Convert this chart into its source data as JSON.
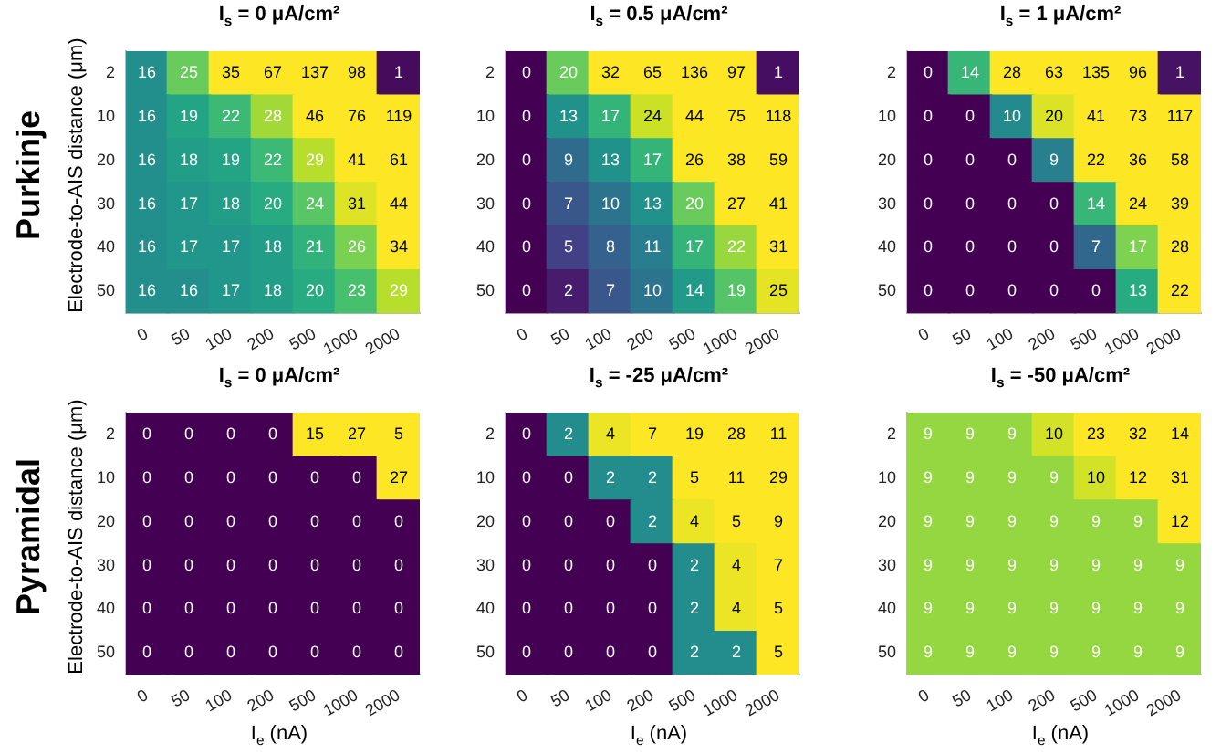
{
  "chart_data": [
    {
      "type": "heatmap",
      "title": "I$_{s}$ = 0 μA/cm²",
      "ylabel": "Electrode-to-AIS distance (μm)",
      "annotations": [
        "Purkinje"
      ],
      "categories": [
        "0",
        "50",
        "100",
        "200",
        "500",
        "1000",
        "2000"
      ],
      "y_categories": [
        "2",
        "10",
        "20",
        "30",
        "40",
        "50"
      ],
      "data_labels": true,
      "cells": [
        [
          16,
          25,
          35,
          67,
          137,
          98,
          1
        ],
        [
          16,
          19,
          22,
          28,
          46,
          76,
          119
        ],
        [
          16,
          18,
          19,
          22,
          29,
          41,
          61
        ],
        [
          16,
          17,
          18,
          20,
          24,
          31,
          44
        ],
        [
          16,
          17,
          17,
          18,
          21,
          26,
          34
        ],
        [
          16,
          16,
          17,
          18,
          20,
          23,
          29
        ]
      ]
    },
    {
      "type": "heatmap",
      "title": "I$_{s}$ = 0.5 μA/cm²",
      "categories": [
        "0",
        "50",
        "100",
        "200",
        "500",
        "1000",
        "2000"
      ],
      "y_categories": [
        "2",
        "10",
        "20",
        "30",
        "40",
        "50"
      ],
      "data_labels": true,
      "cells": [
        [
          0,
          20,
          32,
          65,
          136,
          97,
          1
        ],
        [
          0,
          13,
          17,
          24,
          44,
          75,
          118
        ],
        [
          0,
          9,
          13,
          17,
          26,
          38,
          59
        ],
        [
          0,
          7,
          10,
          13,
          20,
          27,
          41
        ],
        [
          0,
          5,
          8,
          11,
          17,
          22,
          31
        ],
        [
          0,
          2,
          7,
          10,
          14,
          19,
          25
        ]
      ]
    },
    {
      "type": "heatmap",
      "title": "I$_{s}$ = 1 μA/cm²",
      "categories": [
        "0",
        "50",
        "100",
        "200",
        "500",
        "1000",
        "2000"
      ],
      "y_categories": [
        "2",
        "10",
        "20",
        "30",
        "40",
        "50"
      ],
      "data_labels": true,
      "cells": [
        [
          0,
          14,
          28,
          63,
          135,
          96,
          1
        ],
        [
          0,
          0,
          10,
          20,
          41,
          73,
          117
        ],
        [
          0,
          0,
          0,
          9,
          22,
          36,
          58
        ],
        [
          0,
          0,
          0,
          0,
          14,
          24,
          39
        ],
        [
          0,
          0,
          0,
          0,
          7,
          17,
          28
        ],
        [
          0,
          0,
          0,
          0,
          0,
          13,
          22
        ]
      ]
    },
    {
      "type": "heatmap",
      "title": "I$_{s}$ = 0 μA/cm²",
      "xlabel": "I$_{e}$ (nA)",
      "ylabel": "Electrode-to-AIS distance (μm)",
      "annotations": [
        "Pyramidal"
      ],
      "categories": [
        "0",
        "50",
        "100",
        "200",
        "500",
        "1000",
        "2000"
      ],
      "y_categories": [
        "2",
        "10",
        "20",
        "30",
        "40",
        "50"
      ],
      "data_labels": true,
      "cells": [
        [
          0,
          0,
          0,
          0,
          15,
          27,
          5
        ],
        [
          0,
          0,
          0,
          0,
          0,
          0,
          27
        ],
        [
          0,
          0,
          0,
          0,
          0,
          0,
          0
        ],
        [
          0,
          0,
          0,
          0,
          0,
          0,
          0
        ],
        [
          0,
          0,
          0,
          0,
          0,
          0,
          0
        ],
        [
          0,
          0,
          0,
          0,
          0,
          0,
          0
        ]
      ]
    },
    {
      "type": "heatmap",
      "title": "I$_{s}$ = -25 μA/cm²",
      "xlabel": "I$_{e}$ (nA)",
      "categories": [
        "0",
        "50",
        "100",
        "200",
        "500",
        "1000",
        "2000"
      ],
      "y_categories": [
        "2",
        "10",
        "20",
        "30",
        "40",
        "50"
      ],
      "data_labels": true,
      "cells": [
        [
          0,
          2,
          4,
          7,
          19,
          28,
          11
        ],
        [
          0,
          0,
          2,
          2,
          5,
          11,
          29
        ],
        [
          0,
          0,
          0,
          2,
          4,
          5,
          9
        ],
        [
          0,
          0,
          0,
          0,
          2,
          4,
          7
        ],
        [
          0,
          0,
          0,
          0,
          2,
          4,
          5
        ],
        [
          0,
          0,
          0,
          0,
          2,
          2,
          5
        ]
      ]
    },
    {
      "type": "heatmap",
      "title": "I$_{s}$ = -50 μA/cm²",
      "xlabel": "I$_{e}$ (nA)",
      "categories": [
        "0",
        "50",
        "100",
        "200",
        "500",
        "1000",
        "2000"
      ],
      "y_categories": [
        "2",
        "10",
        "20",
        "30",
        "40",
        "50"
      ],
      "data_labels": true,
      "cells": [
        [
          9,
          9,
          9,
          10,
          23,
          32,
          14
        ],
        [
          9,
          9,
          9,
          9,
          10,
          12,
          31
        ],
        [
          9,
          9,
          9,
          9,
          9,
          9,
          12
        ],
        [
          9,
          9,
          9,
          9,
          9,
          9,
          9
        ],
        [
          9,
          9,
          9,
          9,
          9,
          9,
          9
        ],
        [
          9,
          9,
          9,
          9,
          9,
          9,
          9
        ]
      ]
    }
  ]
}
